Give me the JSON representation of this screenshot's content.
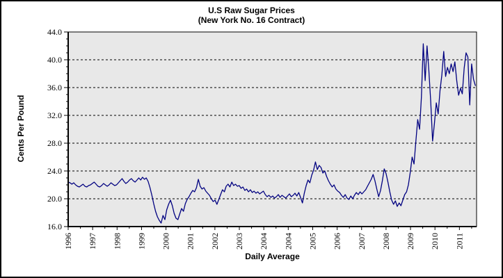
{
  "chart_data": {
    "type": "line",
    "title": "U.S Raw Sugar Prices",
    "subtitle": "(New York No. 16 Contract)",
    "xlabel": "Daily Average",
    "ylabel": "Cents Per Pound",
    "ylim": [
      16.0,
      44.0
    ],
    "y_major_step": 4.0,
    "y_minor_step": 1.0,
    "y_tick_labels": [
      "16.0",
      "20.0",
      "24.0",
      "28.0",
      "32.0",
      "36.0",
      "40.0",
      "44.0"
    ],
    "x_tick_labels": [
      "1996",
      "1997",
      "1998",
      "1999",
      "2000",
      "2001",
      "2002",
      "2003",
      "2004",
      "2004",
      "2005",
      "2006",
      "2007",
      "2008",
      "2009",
      "2010",
      "2011"
    ],
    "gridlines": {
      "horizontal_dashed_at": [
        20.0,
        24.0,
        28.0,
        32.0,
        36.0,
        40.0
      ]
    },
    "legend": "none",
    "colors": {
      "line": "#000080",
      "plot_bg": "#e8e8e8",
      "grid": "#000000",
      "axis": "#000000",
      "canvas_bg": "#ffffff",
      "border": "#000000"
    },
    "series": [
      {
        "name": "U.S raw sugar price",
        "units": "cents per pound",
        "color": "#000080",
        "values": [
          22.4,
          22.3,
          22.1,
          22.3,
          22.0,
          21.8,
          21.7,
          21.9,
          22.1,
          21.8,
          21.7,
          21.9,
          22.0,
          22.2,
          22.4,
          22.1,
          21.8,
          21.7,
          21.9,
          22.2,
          22.0,
          21.8,
          22.0,
          22.3,
          22.1,
          21.9,
          22.0,
          22.3,
          22.6,
          22.9,
          22.5,
          22.2,
          22.4,
          22.7,
          22.9,
          22.6,
          22.4,
          22.7,
          23.0,
          22.7,
          23.1,
          22.8,
          23.0,
          22.5,
          21.6,
          20.5,
          19.3,
          18.2,
          17.4,
          16.9,
          16.5,
          17.6,
          17.0,
          18.4,
          19.2,
          19.8,
          19.0,
          17.9,
          17.2,
          17.0,
          17.8,
          18.6,
          18.2,
          19.3,
          19.9,
          20.3,
          20.8,
          21.2,
          21.0,
          21.6,
          22.8,
          21.8,
          21.4,
          21.6,
          21.1,
          20.8,
          20.5,
          20.0,
          19.6,
          19.8,
          19.2,
          19.9,
          20.6,
          21.3,
          21.0,
          21.8,
          22.1,
          21.7,
          22.4,
          21.9,
          22.1,
          21.8,
          21.9,
          21.5,
          21.7,
          21.2,
          21.4,
          21.0,
          21.3,
          20.9,
          21.1,
          20.8,
          21.0,
          20.7,
          20.9,
          21.1,
          20.6,
          20.3,
          20.5,
          20.2,
          20.4,
          20.1,
          20.3,
          20.6,
          20.2,
          20.5,
          20.3,
          20.1,
          20.4,
          20.7,
          20.3,
          20.5,
          20.8,
          20.4,
          20.9,
          20.2,
          19.4,
          20.8,
          21.9,
          22.7,
          22.3,
          23.4,
          24.1,
          25.3,
          24.2,
          24.8,
          24.5,
          23.7,
          24.0,
          23.2,
          22.6,
          22.1,
          21.7,
          22.0,
          21.4,
          21.1,
          20.9,
          20.5,
          20.2,
          20.6,
          20.1,
          19.9,
          20.4,
          20.0,
          20.5,
          20.9,
          20.6,
          21.0,
          20.7,
          21.0,
          21.3,
          21.8,
          22.3,
          22.8,
          23.5,
          22.6,
          21.4,
          20.3,
          21.2,
          22.6,
          24.3,
          23.6,
          22.4,
          21.0,
          19.8,
          19.2,
          19.7,
          18.9,
          19.4,
          19.0,
          19.8,
          20.6,
          21.0,
          22.0,
          23.8,
          26.0,
          25.0,
          28.2,
          31.4,
          30.0,
          34.6,
          42.3,
          37.0,
          42.0,
          38.5,
          34.0,
          28.3,
          30.8,
          33.8,
          32.2,
          35.6,
          37.8,
          41.2,
          37.6,
          38.9,
          38.0,
          39.4,
          38.3,
          39.7,
          37.0,
          34.9,
          35.9,
          35.1,
          38.8,
          41.0,
          40.4,
          33.5,
          39.4,
          37.2,
          36.3
        ]
      }
    ]
  }
}
